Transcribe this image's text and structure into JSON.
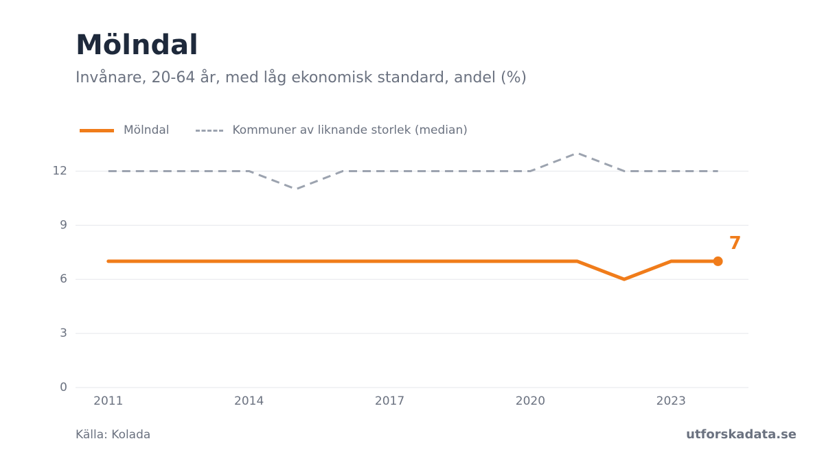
{
  "header": {
    "title": "Mölndal",
    "subtitle": "Invånare, 20-64 år, med låg ekonomisk standard, andel (%)"
  },
  "legend": {
    "items": [
      {
        "label": "Mölndal"
      },
      {
        "label": "Kommuner av liknande storlek (median)"
      }
    ]
  },
  "footer": {
    "source": "Källa: Kolada",
    "brand": "utforskadata.se"
  },
  "colors": {
    "primary": "#f07c1a",
    "comparison": "#9ca3af",
    "grid": "#e5e7eb",
    "axis_text": "#6b7280",
    "title": "#1e293b"
  },
  "chart_data": {
    "type": "line",
    "title": "Mölndal",
    "subtitle": "Invånare, 20-64 år, med låg ekonomisk standard, andel (%)",
    "xlabel": "",
    "ylabel": "",
    "x": [
      2011,
      2012,
      2013,
      2014,
      2015,
      2016,
      2017,
      2018,
      2019,
      2020,
      2021,
      2022,
      2023,
      2024
    ],
    "series": [
      {
        "name": "Mölndal",
        "values": [
          7,
          7,
          7,
          7,
          7,
          7,
          7,
          7,
          7,
          7,
          7,
          6,
          7,
          7
        ],
        "style": "solid"
      },
      {
        "name": "Kommuner av liknande storlek (median)",
        "values": [
          12,
          12,
          12,
          12,
          11,
          12,
          12,
          12,
          12,
          12,
          13,
          12,
          12,
          12
        ],
        "style": "dashed"
      }
    ],
    "xticks": [
      2011,
      2014,
      2017,
      2020,
      2023
    ],
    "yticks": [
      0,
      3,
      6,
      9,
      12
    ],
    "xlim": [
      2010.3,
      2024.65
    ],
    "ylim": [
      0,
      13.5
    ],
    "grid": true,
    "legend_position": "top-left",
    "end_label": "7"
  }
}
